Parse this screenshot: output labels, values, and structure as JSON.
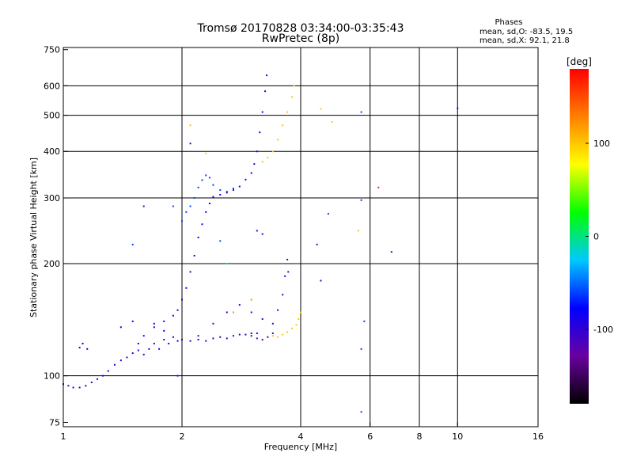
{
  "chart_data": {
    "type": "scatter",
    "title": "Tromsø 20170828 03:34:00-03:35:43",
    "subtitle": "RwPretec (8p)",
    "xlabel": "Frequency [MHz]",
    "ylabel": "Stationary phase Virtual Height [km]",
    "x_scale": "log",
    "y_scale": "log",
    "xlim": [
      1,
      16
    ],
    "ylim": [
      73,
      760
    ],
    "x_ticks": [
      1,
      2,
      4,
      6,
      8,
      10,
      16
    ],
    "y_ticks": [
      75,
      100,
      200,
      300,
      400,
      500,
      600,
      750
    ],
    "x_gridlines": [
      2,
      4,
      6,
      8,
      10
    ],
    "y_gridlines": [
      100,
      200,
      300,
      400,
      500,
      600
    ],
    "grid": true,
    "legend": {
      "title": "Phases",
      "lines": [
        "mean, sd,O: -83.5, 19.5",
        "mean, sd,X:  92.1, 21.8"
      ],
      "placement": "top-right"
    },
    "colorbar": {
      "label": "[deg]",
      "ticks": [
        100,
        0,
        -100
      ],
      "range": [
        -180,
        180
      ],
      "colors": [
        "#000000",
        "#6a00a0",
        "#0000ff",
        "#00c8ff",
        "#00ff00",
        "#ffff00",
        "#ff8000",
        "#ff0000"
      ]
    },
    "traces": [
      {
        "phase_deg": -95,
        "points": [
          [
            1.0,
            95
          ],
          [
            1.03,
            94
          ],
          [
            1.06,
            93
          ],
          [
            1.1,
            93
          ],
          [
            1.14,
            94
          ],
          [
            1.18,
            96
          ],
          [
            1.22,
            98
          ],
          [
            1.26,
            100
          ],
          [
            1.3,
            103
          ],
          [
            1.35,
            107
          ],
          [
            1.4,
            110
          ],
          [
            1.45,
            112
          ],
          [
            1.5,
            115
          ],
          [
            1.55,
            117
          ],
          [
            1.6,
            114
          ],
          [
            1.65,
            118
          ],
          [
            1.7,
            122
          ],
          [
            1.75,
            118
          ],
          [
            1.8,
            125
          ],
          [
            1.85,
            122
          ],
          [
            1.9,
            127
          ],
          [
            1.95,
            124
          ],
          [
            2.0,
            125
          ],
          [
            2.1,
            124
          ],
          [
            2.2,
            125
          ],
          [
            2.3,
            124
          ],
          [
            2.4,
            126
          ],
          [
            2.5,
            127
          ],
          [
            2.6,
            126
          ],
          [
            2.7,
            128
          ],
          [
            2.8,
            129
          ],
          [
            2.9,
            129
          ],
          [
            3.0,
            130
          ],
          [
            3.1,
            130
          ]
        ]
      },
      {
        "phase_deg": -85,
        "points": [
          [
            1.55,
            122
          ],
          [
            1.6,
            128
          ],
          [
            1.7,
            135
          ],
          [
            1.8,
            140
          ],
          [
            1.9,
            145
          ],
          [
            1.95,
            150
          ],
          [
            2.0,
            160
          ],
          [
            2.05,
            172
          ],
          [
            2.1,
            190
          ],
          [
            2.15,
            210
          ],
          [
            2.2,
            235
          ],
          [
            2.25,
            255
          ],
          [
            2.3,
            275
          ],
          [
            2.35,
            290
          ],
          [
            2.4,
            302
          ],
          [
            2.5,
            306
          ],
          [
            2.6,
            310
          ],
          [
            2.7,
            315
          ],
          [
            2.8,
            322
          ],
          [
            2.9,
            336
          ],
          [
            3.0,
            350
          ],
          [
            3.05,
            370
          ],
          [
            3.1,
            400
          ],
          [
            3.15,
            450
          ],
          [
            3.2,
            510
          ],
          [
            3.25,
            580
          ],
          [
            3.28,
            640
          ]
        ]
      },
      {
        "phase_deg": -60,
        "points": [
          [
            2.0,
            260
          ],
          [
            2.05,
            275
          ],
          [
            2.1,
            285
          ],
          [
            2.15,
            300
          ],
          [
            2.2,
            320
          ],
          [
            2.25,
            335
          ],
          [
            2.3,
            345
          ],
          [
            2.35,
            340
          ],
          [
            2.4,
            325
          ],
          [
            2.5,
            315
          ],
          [
            2.6,
            312
          ],
          [
            2.7,
            318
          ]
        ]
      },
      {
        "phase_deg": -100,
        "points": [
          [
            2.2,
            128
          ],
          [
            2.4,
            138
          ],
          [
            2.6,
            148
          ],
          [
            2.8,
            155
          ],
          [
            3.0,
            148
          ],
          [
            3.2,
            142
          ],
          [
            3.4,
            138
          ],
          [
            3.5,
            150
          ],
          [
            3.6,
            165
          ],
          [
            3.65,
            185
          ],
          [
            3.7,
            205
          ],
          [
            3.72,
            190
          ]
        ]
      },
      {
        "phase_deg": 100,
        "points": [
          [
            3.4,
            128
          ],
          [
            3.5,
            127
          ],
          [
            3.6,
            129
          ],
          [
            3.7,
            131
          ],
          [
            3.8,
            134
          ],
          [
            3.9,
            137
          ],
          [
            3.95,
            142
          ],
          [
            4.0,
            148
          ]
        ]
      },
      {
        "phase_deg": 100,
        "points": [
          [
            3.2,
            375
          ],
          [
            3.3,
            385
          ],
          [
            3.4,
            400
          ],
          [
            3.5,
            430
          ],
          [
            3.6,
            470
          ],
          [
            3.7,
            510
          ],
          [
            3.8,
            560
          ],
          [
            3.85,
            600
          ]
        ]
      },
      {
        "phase_deg": -110,
        "points": [
          [
            3.0,
            128
          ],
          [
            3.1,
            126
          ],
          [
            3.2,
            125
          ],
          [
            3.3,
            127
          ],
          [
            3.4,
            130
          ]
        ]
      },
      {
        "phase_deg": -80,
        "points": [
          [
            1.1,
            119
          ],
          [
            1.12,
            122
          ],
          [
            1.15,
            118
          ],
          [
            1.4,
            135
          ],
          [
            1.5,
            140
          ],
          [
            1.7,
            138
          ],
          [
            1.8,
            132
          ]
        ]
      }
    ],
    "isolated_points": [
      {
        "x": 5.7,
        "y": 80,
        "phase_deg": -60
      },
      {
        "x": 5.7,
        "y": 118,
        "phase_deg": -60
      },
      {
        "x": 5.8,
        "y": 140,
        "phase_deg": -60
      },
      {
        "x": 5.7,
        "y": 296,
        "phase_deg": -60
      },
      {
        "x": 5.7,
        "y": 510,
        "phase_deg": -60
      },
      {
        "x": 5.6,
        "y": 245,
        "phase_deg": 100
      },
      {
        "x": 6.3,
        "y": 320,
        "phase_deg": 170
      },
      {
        "x": 6.8,
        "y": 215,
        "phase_deg": -110
      },
      {
        "x": 10.0,
        "y": 522,
        "phase_deg": -100
      },
      {
        "x": 4.5,
        "y": 520,
        "phase_deg": 100
      },
      {
        "x": 4.8,
        "y": 480,
        "phase_deg": 100
      },
      {
        "x": 4.4,
        "y": 225,
        "phase_deg": -110
      },
      {
        "x": 4.5,
        "y": 180,
        "phase_deg": -110
      },
      {
        "x": 4.7,
        "y": 272,
        "phase_deg": -60
      },
      {
        "x": 3.1,
        "y": 245,
        "phase_deg": -100
      },
      {
        "x": 3.2,
        "y": 240,
        "phase_deg": -100
      },
      {
        "x": 1.6,
        "y": 285,
        "phase_deg": -100
      },
      {
        "x": 1.9,
        "y": 285,
        "phase_deg": -60
      },
      {
        "x": 1.5,
        "y": 225,
        "phase_deg": -60
      },
      {
        "x": 2.6,
        "y": 200,
        "phase_deg": 0
      },
      {
        "x": 2.5,
        "y": 230,
        "phase_deg": -60
      },
      {
        "x": 2.3,
        "y": 395,
        "phase_deg": 100
      },
      {
        "x": 2.1,
        "y": 470,
        "phase_deg": 100
      },
      {
        "x": 2.1,
        "y": 420,
        "phase_deg": -100
      },
      {
        "x": 1.95,
        "y": 100,
        "phase_deg": -100
      },
      {
        "x": 2.7,
        "y": 148,
        "phase_deg": 120
      },
      {
        "x": 3.0,
        "y": 160,
        "phase_deg": 120
      }
    ]
  }
}
